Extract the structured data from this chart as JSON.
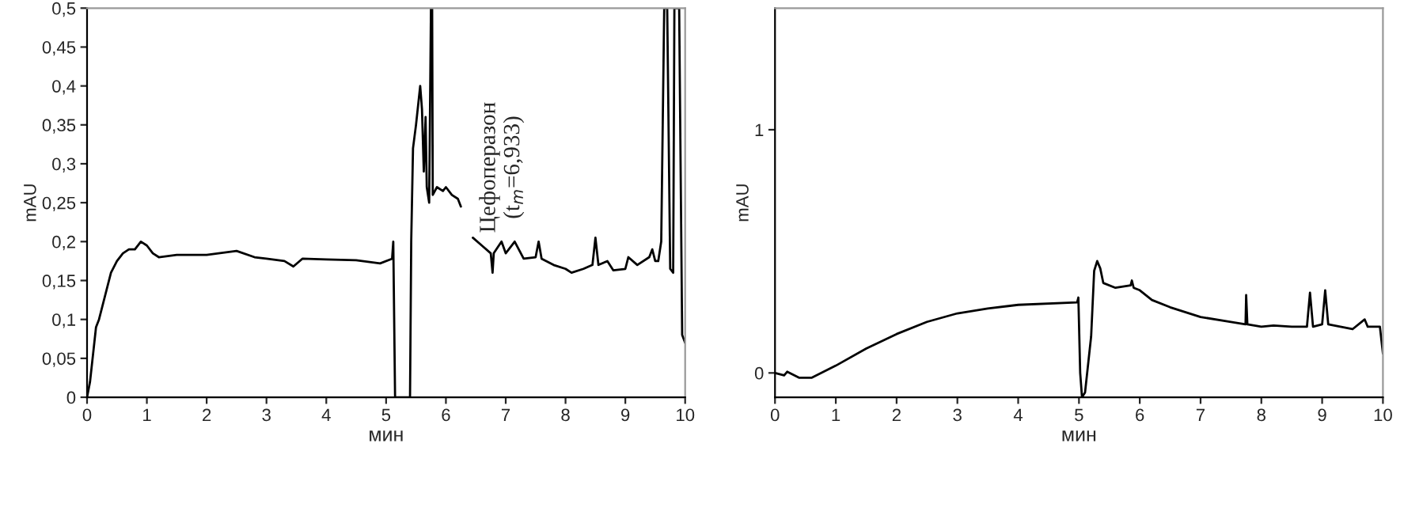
{
  "chart_data": [
    {
      "type": "line",
      "xlabel": "мин",
      "ylabel": "mAU",
      "xlim": [
        0,
        10
      ],
      "ylim": [
        0,
        0.5
      ],
      "xticks": [
        0,
        1,
        2,
        3,
        4,
        5,
        6,
        7,
        8,
        9,
        10
      ],
      "yticks": [
        0,
        {
          "value": 0.05,
          "label": "0,05"
        },
        {
          "value": 0.1,
          "label": "0,1"
        },
        {
          "value": 0.15,
          "label": "0,15"
        },
        {
          "value": 0.2,
          "label": "0,2"
        },
        {
          "value": 0.25,
          "label": "0,25"
        },
        {
          "value": 0.3,
          "label": "0,3"
        },
        {
          "value": 0.35,
          "label": "0,35"
        },
        {
          "value": 0.4,
          "label": "0,4"
        },
        {
          "value": 0.45,
          "label": "0,45"
        },
        {
          "value": 0.5,
          "label": "0,5"
        }
      ],
      "grid": false,
      "marker": "none",
      "line_style": "solid",
      "annotations": [
        {
          "text": "Цефоперазон\n(t$_{m}$=6,933)",
          "x": 6.933,
          "y": 0.2
        }
      ],
      "series": [
        {
          "color": "#000000",
          "x": [
            0,
            0.05,
            0.15,
            0.2,
            0.3,
            0.4,
            0.5,
            0.6,
            0.7,
            0.8,
            0.9,
            1.0,
            1.1,
            1.2,
            1.5,
            2.0,
            2.5,
            2.8,
            3.0,
            3.3,
            3.45,
            3.6,
            4.0,
            4.5,
            4.9,
            5.1,
            5.12,
            5.15,
            5.4,
            5.42,
            5.45,
            5.5,
            5.57,
            5.6,
            5.63,
            5.66,
            5.68,
            5.72,
            5.75,
            5.77,
            5.78,
            5.85,
            5.95,
            6.0,
            6.1,
            6.2,
            6.25,
            6.35,
            6.45,
            6.6,
            6.75,
            6.78,
            6.8,
            6.93,
            7.0,
            7.15,
            7.3,
            7.5,
            7.55,
            7.6,
            7.8,
            8.0,
            8.1,
            8.3,
            8.45,
            8.5,
            8.55,
            8.7,
            8.8,
            9.0,
            9.05,
            9.2,
            9.4,
            9.45,
            9.5,
            9.55,
            9.6,
            9.65,
            9.7,
            9.75,
            9.8,
            9.82,
            9.9,
            9.95,
            10.0
          ],
          "values": [
            0,
            0.02,
            0.09,
            0.1,
            0.13,
            0.16,
            0.175,
            0.185,
            0.19,
            0.19,
            0.2,
            0.195,
            0.185,
            0.18,
            0.183,
            0.183,
            0.188,
            0.18,
            0.178,
            0.175,
            0.168,
            0.178,
            0.177,
            0.176,
            0.172,
            0.178,
            0.2,
            0,
            0,
            0.2,
            0.32,
            0.35,
            0.4,
            0.37,
            0.29,
            0.36,
            0.27,
            0.25,
            0.5,
            0.5,
            0.26,
            0.27,
            0.265,
            0.27,
            0.26,
            0.255,
            0.245,
            null,
            0.205,
            0.195,
            0.185,
            0.16,
            0.185,
            0.2,
            0.185,
            0.2,
            0.178,
            0.18,
            0.2,
            0.178,
            0.17,
            0.165,
            0.16,
            0.165,
            0.17,
            0.205,
            0.17,
            0.175,
            0.163,
            0.165,
            0.18,
            0.17,
            0.18,
            0.19,
            0.175,
            0.175,
            0.2,
            0.5,
            0.5,
            0.165,
            0.16,
            0.5,
            0.5,
            0.08,
            0.07
          ]
        }
      ]
    },
    {
      "type": "line",
      "xlabel": "мин",
      "ylabel": "mAU",
      "xlim": [
        0,
        10
      ],
      "ylim": [
        -0.1,
        1.5
      ],
      "xticks": [
        0,
        1,
        2,
        3,
        4,
        5,
        6,
        7,
        8,
        9,
        10
      ],
      "yticks": [
        0,
        1
      ],
      "grid": false,
      "marker": "none",
      "line_style": "solid",
      "series": [
        {
          "color": "#000000",
          "x": [
            0,
            0.15,
            0.2,
            0.4,
            0.6,
            1.0,
            1.5,
            2.0,
            2.5,
            3.0,
            3.5,
            4.0,
            4.97,
            4.99,
            5.02,
            5.05,
            5.1,
            5.2,
            5.25,
            5.3,
            5.35,
            5.4,
            5.6,
            5.85,
            5.87,
            5.9,
            6.0,
            6.2,
            6.5,
            7.0,
            7.5,
            7.74,
            7.75,
            7.77,
            8.0,
            8.2,
            8.5,
            8.75,
            8.8,
            8.85,
            9.0,
            9.05,
            9.1,
            9.5,
            9.7,
            9.75,
            9.95,
            10.0
          ],
          "values": [
            0,
            -0.01,
            0.005,
            -0.02,
            -0.02,
            0.03,
            0.1,
            0.16,
            0.21,
            0.245,
            0.265,
            0.28,
            0.29,
            0.31,
            0.0,
            -0.1,
            -0.08,
            0.15,
            0.42,
            0.46,
            0.43,
            0.37,
            0.35,
            0.36,
            0.38,
            0.35,
            0.34,
            0.3,
            0.27,
            0.23,
            0.21,
            0.2,
            0.32,
            0.2,
            0.19,
            0.195,
            0.19,
            0.19,
            0.33,
            0.19,
            0.2,
            0.34,
            0.2,
            0.18,
            0.22,
            0.19,
            0.19,
            0.08
          ]
        }
      ]
    }
  ]
}
